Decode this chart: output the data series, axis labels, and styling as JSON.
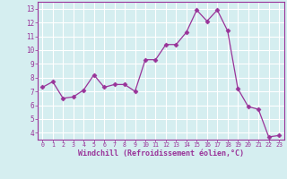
{
  "x": [
    0,
    1,
    2,
    3,
    4,
    5,
    6,
    7,
    8,
    9,
    10,
    11,
    12,
    13,
    14,
    15,
    16,
    17,
    18,
    19,
    20,
    21,
    22,
    23
  ],
  "y": [
    7.3,
    7.7,
    6.5,
    6.6,
    7.1,
    8.2,
    7.3,
    7.5,
    7.5,
    7.0,
    9.3,
    9.3,
    10.4,
    10.4,
    11.3,
    12.9,
    12.1,
    12.9,
    11.4,
    7.2,
    5.9,
    5.7,
    3.7,
    3.8
  ],
  "line_color": "#993399",
  "marker": "D",
  "marker_size": 2.5,
  "bg_color": "#d5eef0",
  "grid_color": "#ffffff",
  "xlabel": "Windchill (Refroidissement éolien,°C)",
  "xlabel_color": "#993399",
  "tick_color": "#993399",
  "spine_color": "#993399",
  "ylim": [
    3.5,
    13.5
  ],
  "xlim": [
    -0.5,
    23.5
  ],
  "yticks": [
    4,
    5,
    6,
    7,
    8,
    9,
    10,
    11,
    12,
    13
  ],
  "xticks": [
    0,
    1,
    2,
    3,
    4,
    5,
    6,
    7,
    8,
    9,
    10,
    11,
    12,
    13,
    14,
    15,
    16,
    17,
    18,
    19,
    20,
    21,
    22,
    23
  ]
}
